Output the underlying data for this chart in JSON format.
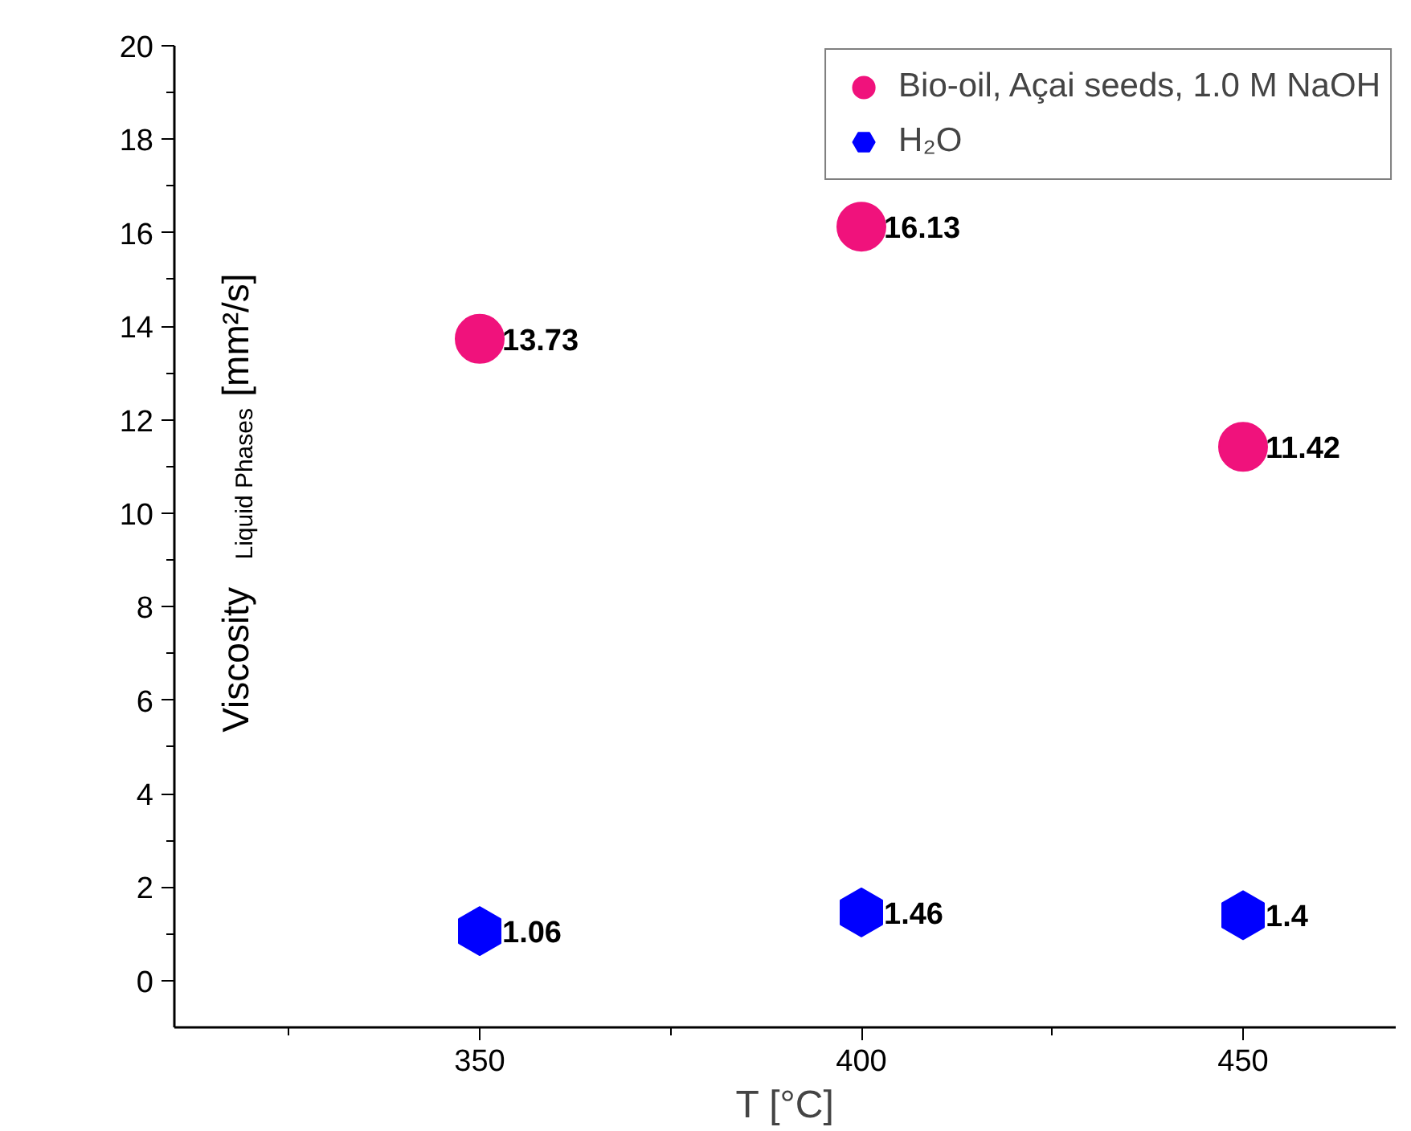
{
  "chart_data": {
    "type": "scatter",
    "xlabel": "T [°C]",
    "ylabel": "Viscosity$_{Liquid Phases}$[mm²/s]",
    "x": [
      350,
      400,
      450
    ],
    "series": [
      {
        "name": "Bio-oil, Açai seeds, 1.0 M NaOH",
        "color": "#f0127c",
        "values": [
          13.73,
          16.13,
          11.42
        ]
      },
      {
        "name": "H₂O",
        "color": "#0000ff",
        "values": [
          1.06,
          1.46,
          1.4
        ]
      }
    ],
    "xlim": [
      310,
      470
    ],
    "xticks": [
      {
        "value": 325,
        "label": null
      },
      350,
      {
        "value": 375,
        "label": null
      },
      400,
      {
        "value": 425,
        "label": null
      },
      450
    ],
    "ylim": [
      -1,
      20
    ],
    "yticks": [
      0,
      {
        "value": 1,
        "label": null
      },
      2,
      {
        "value": 3,
        "label": null
      },
      4,
      {
        "value": 5,
        "label": null
      },
      6,
      {
        "value": 7,
        "label": null
      },
      8,
      {
        "value": 9,
        "label": null
      },
      10,
      {
        "value": 11,
        "label": null
      },
      12,
      {
        "value": 13,
        "label": null
      },
      14,
      {
        "value": 15,
        "label": null
      },
      16,
      {
        "value": 17,
        "label": null
      },
      18,
      {
        "value": 19,
        "label": null
      },
      20
    ],
    "data_labels": true,
    "grid": false,
    "legend": "top right"
  }
}
